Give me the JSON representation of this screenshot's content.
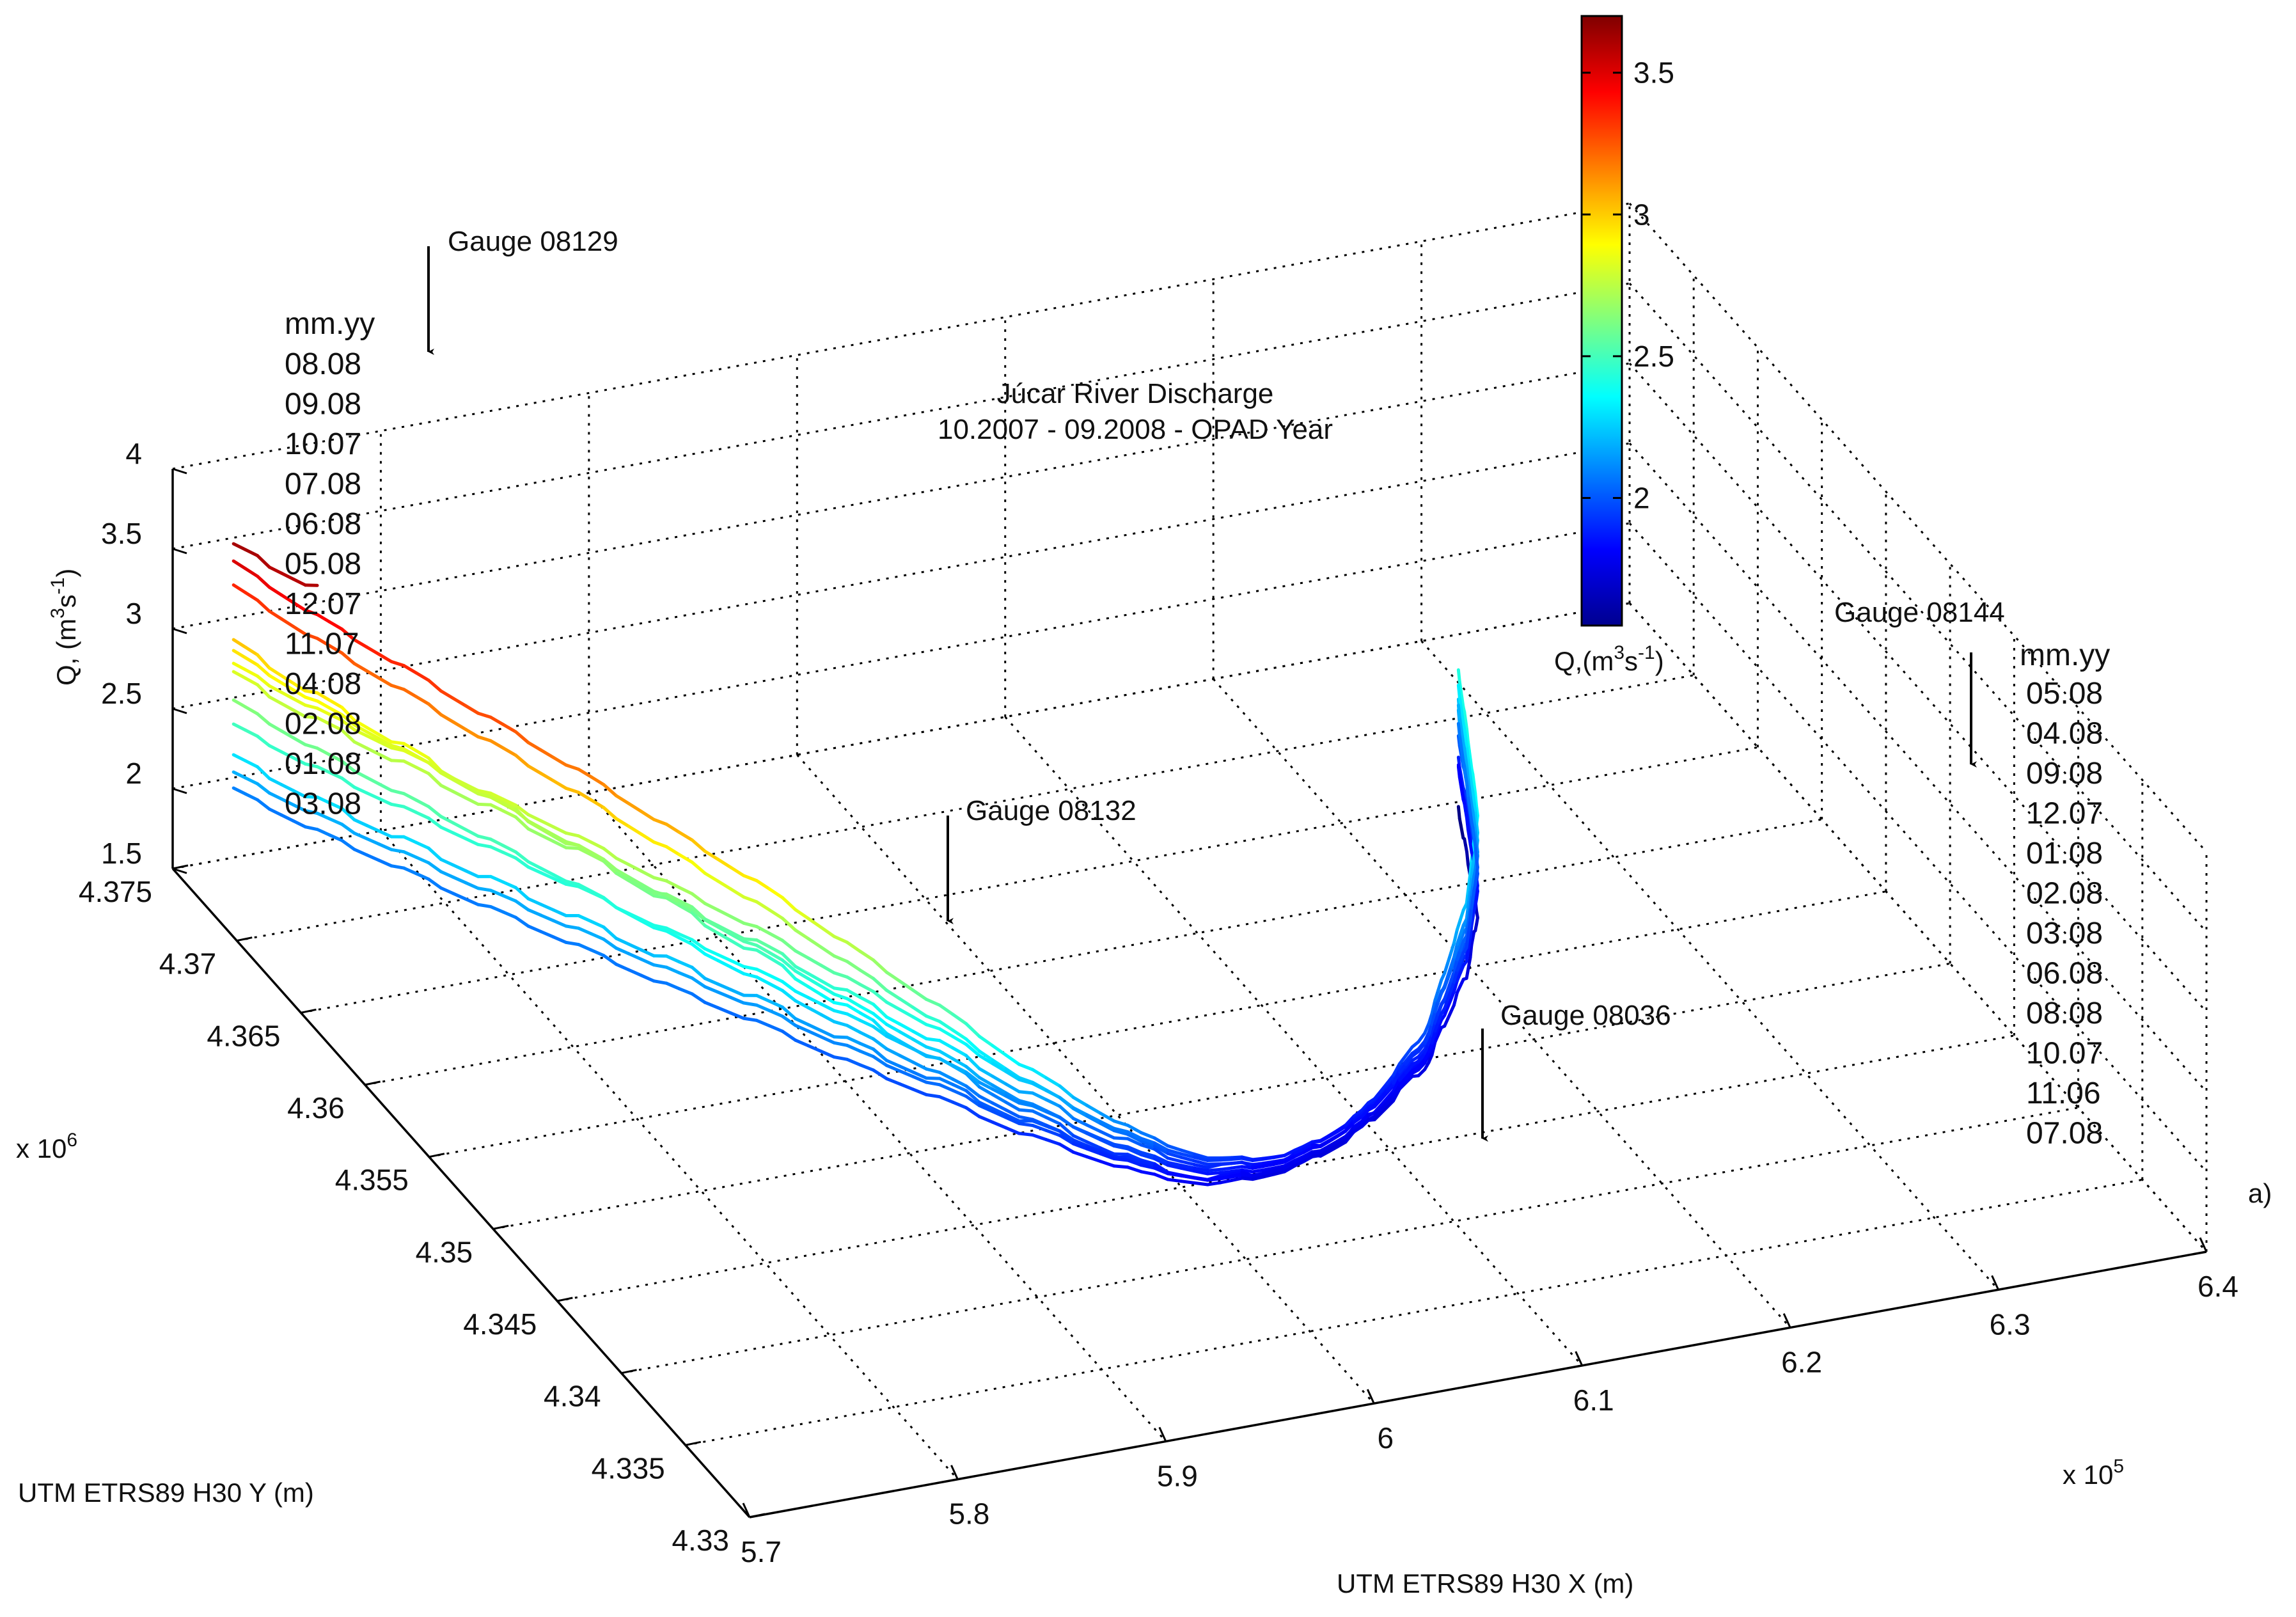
{
  "chart_data": {
    "type": "line",
    "view": "3d",
    "title": "Júcar River Discharge",
    "subtitle": "10.2007 - 09.2008 - OPAD Year",
    "panel_label": "a)",
    "x_axis": {
      "label": "UTM ETRS89 H30 X (m)",
      "multiplier": "x 10",
      "exponent": "5",
      "range": [
        5.7,
        6.4
      ],
      "ticks": [
        "5.7",
        "5.8",
        "5.9",
        "6",
        "6.1",
        "6.2",
        "6.3",
        "6.4"
      ]
    },
    "y_axis": {
      "label": "UTM ETRS89 H30 Y (m)",
      "multiplier": "x 10",
      "exponent": "6",
      "range": [
        4.33,
        4.375
      ],
      "ticks": [
        "4.375",
        "4.37",
        "4.365",
        "4.36",
        "4.355",
        "4.35",
        "4.345",
        "4.34",
        "4.335",
        "4.33"
      ]
    },
    "z_axis": {
      "label": "Q, (m",
      "label_sup": "3",
      "label_mid": "s",
      "label_sup2": "-1",
      "label_end": ")",
      "range": [
        1.5,
        4
      ],
      "ticks": [
        "4",
        "3.5",
        "3",
        "2.5",
        "2",
        "1.5"
      ]
    },
    "colorbar": {
      "colormap": "jet",
      "range": [
        1.55,
        3.7
      ],
      "ticks": [
        "3.5",
        "3",
        "2.5",
        "2"
      ],
      "label": "Q,(m",
      "label_sup": "3",
      "label_mid": "s",
      "label_sup2": "-1",
      "label_end": ")"
    },
    "legend_left": {
      "header": "mm.yy",
      "entries": [
        "08.08",
        "09.08",
        "10.07",
        "07.08",
        "06.08",
        "05.08",
        "12.07",
        "11.07",
        "04.08",
        "02.08",
        "01.08",
        "03.08"
      ]
    },
    "legend_right": {
      "header": "mm.yy",
      "entries": [
        "05.08",
        "04.08",
        "09.08",
        "12.07",
        "01.08",
        "02.08",
        "03.08",
        "06.08",
        "08.08",
        "10.07",
        "11.06",
        "07.08"
      ]
    },
    "gauges": [
      {
        "name": "Gauge 08129"
      },
      {
        "name": "Gauge 08132"
      },
      {
        "name": "Gauge 08036"
      },
      {
        "name": "Gauge 08144"
      }
    ],
    "path_xy": [
      [
        5.72,
        4.3735
      ],
      [
        5.74,
        4.37
      ],
      [
        5.78,
        4.364
      ],
      [
        5.83,
        4.357
      ],
      [
        5.88,
        4.351
      ],
      [
        5.93,
        4.346
      ],
      [
        5.97,
        4.343
      ],
      [
        6.0,
        4.342
      ],
      [
        6.04,
        4.3425
      ],
      [
        6.08,
        4.344
      ],
      [
        6.13,
        4.347
      ],
      [
        6.18,
        4.352
      ],
      [
        6.21,
        4.356
      ],
      [
        6.235,
        4.361
      ],
      [
        6.25,
        4.364
      ]
    ],
    "series": [
      {
        "name": "08.08",
        "q_start": 3.6,
        "q_end": null
      },
      {
        "name": "09.08",
        "q_start": 3.5,
        "q_end": 2.02
      },
      {
        "name": "10.07",
        "q_start": 3.35,
        "q_end": 1.88
      },
      {
        "name": "07.08",
        "q_start": 3.0,
        "q_end": 1.55
      },
      {
        "name": "06.08",
        "q_start": 2.94,
        "q_end": 1.83
      },
      {
        "name": "05.08",
        "q_start": 2.86,
        "q_end": 2.45
      },
      {
        "name": "12.07",
        "q_start": 2.8,
        "q_end": 2.25
      },
      {
        "name": "11.07",
        "q_start": 2.63,
        "q_end": 1.82
      },
      {
        "name": "04.08",
        "q_start": 2.48,
        "q_end": 2.35
      },
      {
        "name": "02.08",
        "q_start": 2.28,
        "q_end": 2.18
      },
      {
        "name": "01.08",
        "q_start": 2.18,
        "q_end": 2.22
      },
      {
        "name": "03.08",
        "q_start": 2.08,
        "q_end": 2.1
      }
    ]
  }
}
